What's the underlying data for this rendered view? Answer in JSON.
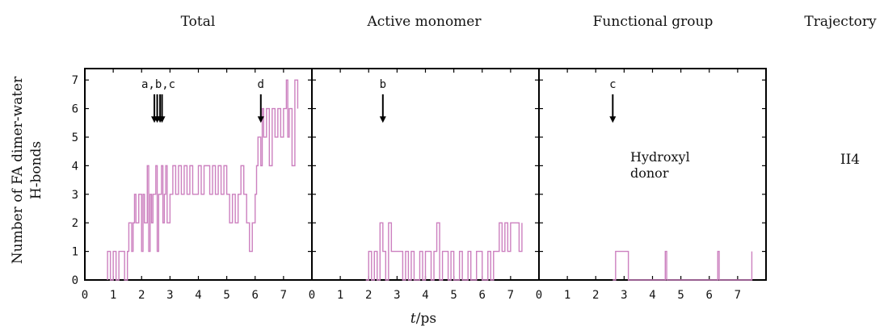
{
  "figure": {
    "column_headers": [
      "Total",
      "Active monomer",
      "Functional group",
      "Trajectory"
    ],
    "trajectory_label": "II4",
    "ylabel_line1": "Number of FA dimer-water",
    "ylabel_line2": "H-bonds",
    "xlabel_italic": "t",
    "xlabel_rest": "/ps",
    "panel3_annotation_line1": "Hydroxyl",
    "panel3_annotation_line2": "donor"
  },
  "colors": {
    "series": "#cc80bf",
    "axis": "#000000",
    "text": "#111111"
  },
  "chart_data": [
    {
      "type": "line",
      "title": "Total",
      "xlim": [
        0,
        8
      ],
      "ylim": [
        0,
        7.4
      ],
      "xticks": [
        0,
        1,
        2,
        3,
        4,
        5,
        6,
        7
      ],
      "yticks": [
        0,
        1,
        2,
        3,
        4,
        5,
        6,
        7
      ],
      "arrows": [
        {
          "label": "a,b,c",
          "x": [
            2.45,
            2.55,
            2.65,
            2.72
          ],
          "y_top": 6.5,
          "y_tip": 5.5
        },
        {
          "label": "d",
          "x": [
            6.2
          ],
          "y_top": 6.5,
          "y_tip": 5.5
        }
      ],
      "series": [
        {
          "x": [
            0.8,
            0.9,
            1.0,
            1.1,
            1.2,
            1.4,
            1.5,
            1.55,
            1.65,
            1.7,
            1.75,
            1.8,
            1.9,
            2.0,
            2.05,
            2.1,
            2.2,
            2.25,
            2.3,
            2.35,
            2.4,
            2.5,
            2.55,
            2.6,
            2.7,
            2.75,
            2.8,
            2.85,
            2.9,
            3.0,
            3.1,
            3.2,
            3.3,
            3.4,
            3.5,
            3.6,
            3.7,
            3.8,
            4.0,
            4.1,
            4.2,
            4.4,
            4.5,
            4.6,
            4.7,
            4.8,
            4.9,
            5.0,
            5.1,
            5.2,
            5.3,
            5.4,
            5.5,
            5.6,
            5.7,
            5.8,
            5.9,
            6.0,
            6.05,
            6.1,
            6.2,
            6.25,
            6.3,
            6.4,
            6.5,
            6.6,
            6.7,
            6.8,
            6.9,
            7.0,
            7.1,
            7.15,
            7.2,
            7.3,
            7.4,
            7.5
          ],
          "y": [
            1,
            0,
            1,
            0,
            1,
            0,
            1,
            2,
            1,
            2,
            3,
            2,
            3,
            1,
            3,
            2,
            4,
            1,
            3,
            2,
            3,
            4,
            1,
            3,
            4,
            2,
            3,
            4,
            2,
            3,
            4,
            3,
            4,
            3,
            4,
            3,
            4,
            3,
            4,
            3,
            4,
            3,
            4,
            3,
            4,
            3,
            4,
            3,
            2,
            3,
            2,
            3,
            4,
            3,
            2,
            1,
            2,
            3,
            4,
            5,
            4,
            6,
            5,
            6,
            4,
            6,
            5,
            6,
            5,
            6,
            7,
            5,
            6,
            4,
            7,
            6
          ]
        }
      ]
    },
    {
      "type": "line",
      "title": "Active monomer",
      "xlim": [
        0,
        8
      ],
      "ylim": [
        0,
        7.4
      ],
      "xticks": [
        0,
        1,
        2,
        3,
        4,
        5,
        6,
        7
      ],
      "arrows": [
        {
          "label": "b",
          "x": [
            2.5
          ],
          "y_top": 6.5,
          "y_tip": 5.5
        }
      ],
      "series": [
        {
          "x": [
            1.9,
            2.0,
            2.1,
            2.2,
            2.3,
            2.4,
            2.5,
            2.6,
            2.7,
            2.8,
            3.0,
            3.2,
            3.3,
            3.4,
            3.5,
            3.6,
            3.8,
            3.9,
            4.0,
            4.2,
            4.3,
            4.4,
            4.5,
            4.6,
            4.8,
            4.9,
            5.0,
            5.2,
            5.3,
            5.5,
            5.6,
            5.8,
            6.0,
            6.2,
            6.3,
            6.4,
            6.5,
            6.6,
            6.7,
            6.8,
            6.9,
            7.0,
            7.1,
            7.2,
            7.3,
            7.4
          ],
          "y": [
            0,
            1,
            0,
            1,
            0,
            2,
            1,
            0,
            2,
            1,
            1,
            0,
            1,
            0,
            1,
            0,
            1,
            0,
            1,
            0,
            1,
            2,
            0,
            1,
            0,
            1,
            0,
            1,
            0,
            1,
            0,
            1,
            0,
            1,
            0,
            1,
            1,
            2,
            1,
            2,
            1,
            2,
            2,
            2,
            1,
            2
          ]
        }
      ]
    },
    {
      "type": "line",
      "title": "Functional group",
      "xlim": [
        0,
        8
      ],
      "ylim": [
        0,
        7.4
      ],
      "xticks": [
        0,
        1,
        2,
        3,
        4,
        5,
        6,
        7
      ],
      "arrows": [
        {
          "label": "c",
          "x": [
            2.6
          ],
          "y_top": 6.5,
          "y_tip": 5.5
        }
      ],
      "series": [
        {
          "x": [
            2.6,
            2.7,
            3.1,
            3.15,
            4.45,
            4.5,
            6.3,
            6.35,
            7.5
          ],
          "y": [
            0,
            1,
            1,
            0,
            1,
            0,
            1,
            0,
            1
          ]
        }
      ]
    }
  ]
}
